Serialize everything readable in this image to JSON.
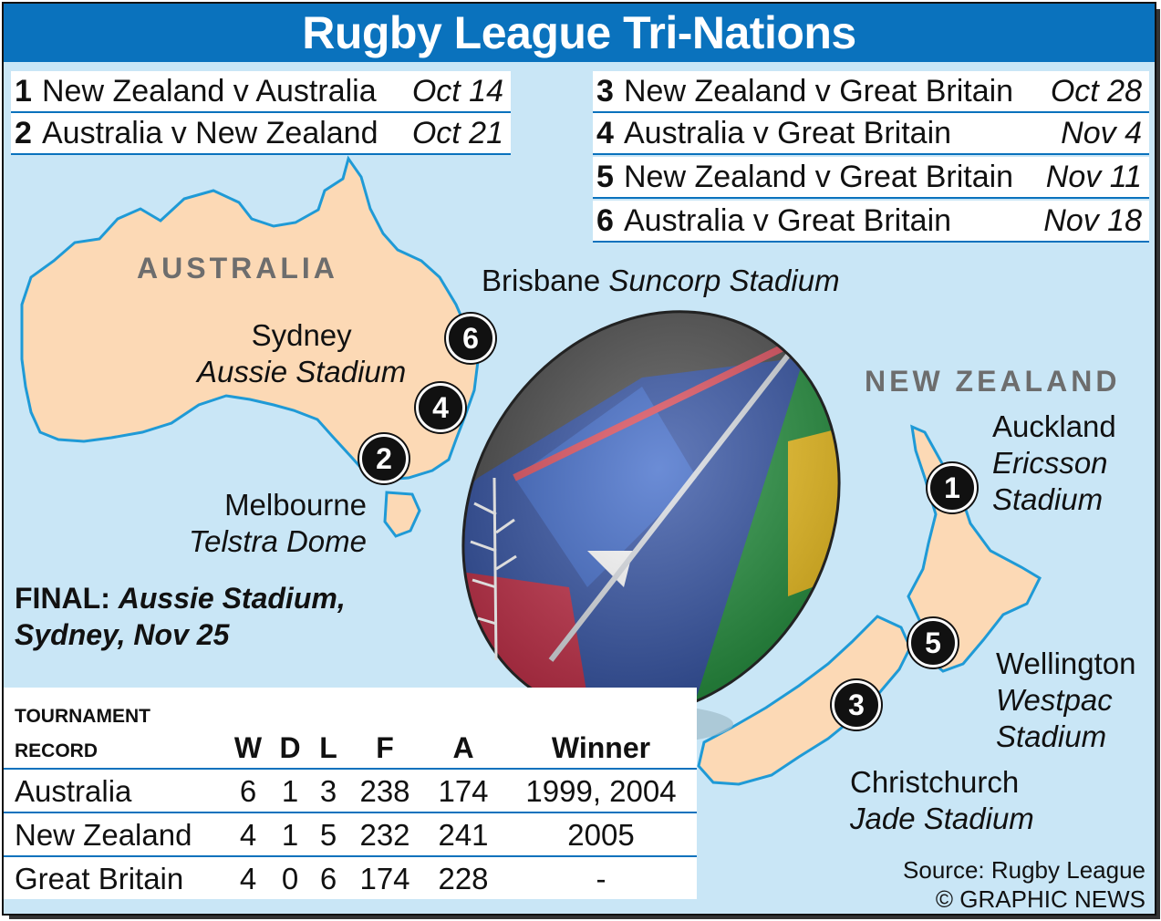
{
  "title": "Rugby League Tri-Nations",
  "schedule": [
    {
      "num": "1",
      "match": "New Zealand v Australia",
      "date": "Oct 14"
    },
    {
      "num": "2",
      "match": "Australia v New Zealand",
      "date": "Oct 21"
    },
    {
      "num": "3",
      "match": "New Zealand v Great Britain",
      "date": "Oct 28"
    },
    {
      "num": "4",
      "match": "Australia v Great Britain",
      "date": "Nov 4"
    },
    {
      "num": "5",
      "match": "New Zealand v Great Britain",
      "date": "Nov 11"
    },
    {
      "num": "6",
      "match": "Australia v Great Britain",
      "date": "Nov 18"
    }
  ],
  "countries": {
    "australia": "AUSTRALIA",
    "new_zealand": "NEW ZEALAND"
  },
  "venues": {
    "brisbane": {
      "city": "Brisbane",
      "stadium": "Suncorp Stadium"
    },
    "sydney": {
      "city": "Sydney",
      "stadium": "Aussie Stadium"
    },
    "melbourne": {
      "city": "Melbourne",
      "stadium": "Telstra Dome"
    },
    "auckland": {
      "city": "Auckland",
      "stadium_1": "Ericsson",
      "stadium_2": "Stadium"
    },
    "wellington": {
      "city": "Wellington",
      "stadium_1": "Westpac",
      "stadium_2": "Stadium"
    },
    "christchurch": {
      "city": "Christchurch",
      "stadium": "Jade Stadium"
    }
  },
  "markers": [
    "1",
    "2",
    "3",
    "4",
    "5",
    "6"
  ],
  "final": {
    "label": "FINAL:",
    "venue": "Aussie Stadium,",
    "line2": "Sydney, Nov 25"
  },
  "record": {
    "title_line1": "Tournament",
    "title_line2": "Record",
    "headers": [
      "W",
      "D",
      "L",
      "F",
      "A",
      "Winner"
    ],
    "rows": [
      {
        "team": "Australia",
        "w": "6",
        "d": "1",
        "l": "3",
        "f": "238",
        "a": "174",
        "winner": "1999, 2004"
      },
      {
        "team": "New Zealand",
        "w": "4",
        "d": "1",
        "l": "5",
        "f": "232",
        "a": "241",
        "winner": "2005"
      },
      {
        "team": "Great Britain",
        "w": "4",
        "d": "0",
        "l": "6",
        "f": "174",
        "a": "228",
        "winner": "-"
      }
    ]
  },
  "source": {
    "line1": "Source: Rugby League",
    "line2": "© GRAPHIC NEWS"
  },
  "colors": {
    "sea": "#c9e6f6",
    "land": "#fcd9b5",
    "coast": "#1f9ad6",
    "banner": "#0a72bd"
  }
}
